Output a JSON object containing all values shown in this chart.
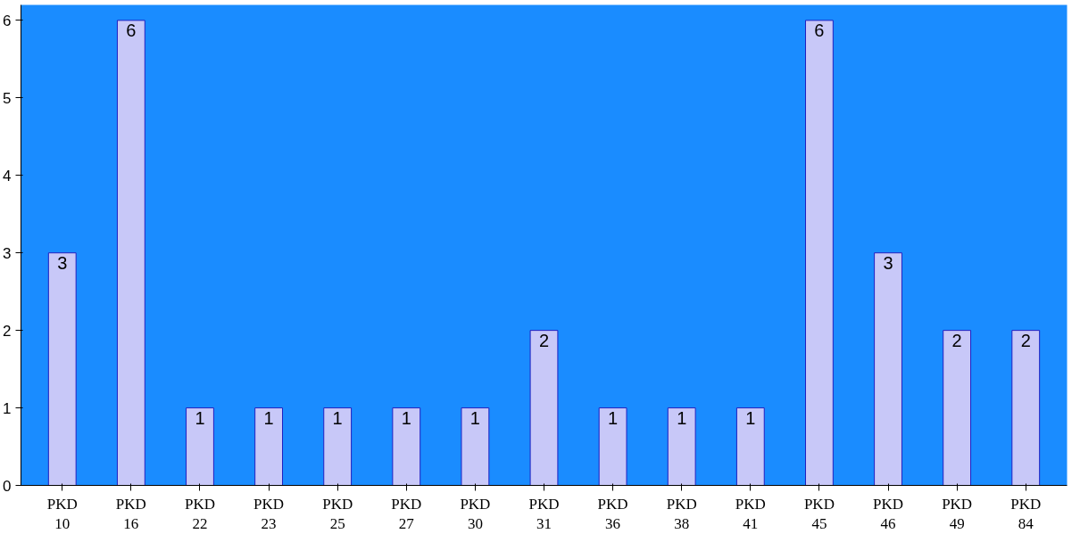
{
  "chart_data": {
    "type": "bar",
    "categories": [
      "PKD\n10",
      "PKD\n16",
      "PKD\n22",
      "PKD\n23",
      "PKD\n25",
      "PKD\n27",
      "PKD\n30",
      "PKD\n31",
      "PKD\n36",
      "PKD\n38",
      "PKD\n41",
      "PKD\n45",
      "PKD\n46",
      "PKD\n49",
      "PKD\n84"
    ],
    "values": [
      3,
      6,
      1,
      1,
      1,
      1,
      1,
      2,
      1,
      1,
      1,
      6,
      3,
      2,
      2
    ],
    "color": "#c8c8f8",
    "ylim": [
      0,
      6.2
    ],
    "yticks": [
      0,
      1,
      2,
      3,
      4,
      5,
      6
    ],
    "grid": false,
    "data_labels": true
  }
}
